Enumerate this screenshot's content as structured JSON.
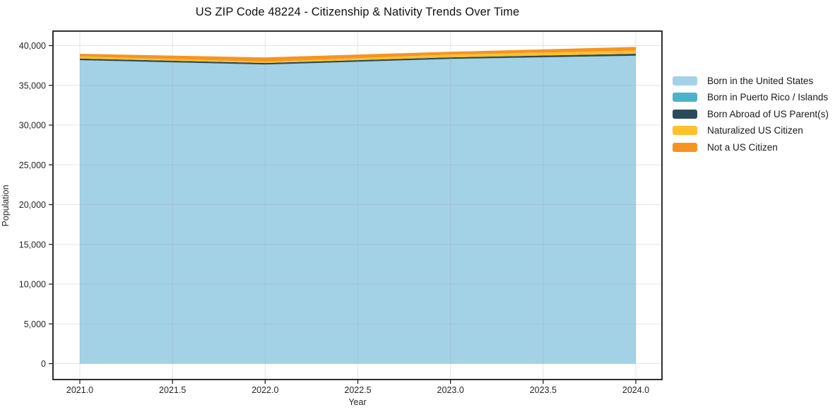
{
  "title": "US ZIP Code 48224 - Citizenship & Nativity Trends Over Time",
  "chart_data": {
    "type": "area",
    "stacked": true,
    "title": "US ZIP Code 48224 - Citizenship & Nativity Trends Over Time",
    "xlabel": "Year",
    "ylabel": "Population",
    "x": [
      2021,
      2022,
      2023,
      2024
    ],
    "series": [
      {
        "name": "Born in the United States",
        "color": "#a3d2e7",
        "values": [
          38150,
          37600,
          38300,
          38700
        ]
      },
      {
        "name": "Born in Puerto Rico / Islands",
        "color": "#4ab3c9",
        "values": [
          20,
          20,
          25,
          30
        ]
      },
      {
        "name": "Born Abroad of US Parent(s)",
        "color": "#2b4b5c",
        "values": [
          200,
          200,
          200,
          250
        ]
      },
      {
        "name": "Naturalized US Citizen",
        "color": "#fcc12d",
        "values": [
          250,
          150,
          350,
          400
        ]
      },
      {
        "name": "Not a US Citizen",
        "color": "#f7941f",
        "values": [
          350,
          550,
          350,
          450
        ]
      }
    ],
    "totals": [
      38970,
      38520,
      39225,
      39830
    ],
    "ylim": [
      0,
      40000
    ],
    "xlim": [
      2021.0,
      2024.0
    ],
    "yticks": [
      0,
      5000,
      10000,
      15000,
      20000,
      25000,
      30000,
      35000,
      40000
    ],
    "ytick_labels": [
      "0",
      "5,000",
      "10,000",
      "15,000",
      "20,000",
      "25,000",
      "30,000",
      "35,000",
      "40,000"
    ],
    "xticks": [
      2021.0,
      2021.5,
      2022.0,
      2022.5,
      2023.0,
      2023.5,
      2024.0
    ],
    "xtick_labels": [
      "2021.0",
      "2021.5",
      "2022.0",
      "2022.5",
      "2023.0",
      "2023.5",
      "2024.0"
    ],
    "grid": true,
    "grid_color": "#e3e3e3",
    "frame_color": "#1a1a1a",
    "legend_position": "right-outside"
  }
}
